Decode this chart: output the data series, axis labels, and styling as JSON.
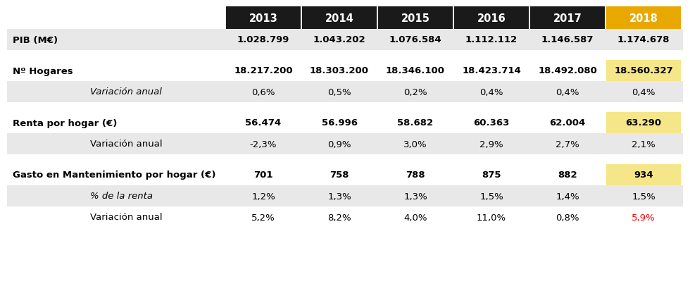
{
  "years": [
    "2013",
    "2014",
    "2015",
    "2016",
    "2017",
    "2018"
  ],
  "header_bg_colors": [
    "#1a1a1a",
    "#1a1a1a",
    "#1a1a1a",
    "#1a1a1a",
    "#1a1a1a",
    "#e8a800"
  ],
  "header_text_colors": [
    "#ffffff",
    "#ffffff",
    "#ffffff",
    "#ffffff",
    "#ffffff",
    "#ffffff"
  ],
  "col_2018_bg": "#f5e68a",
  "row_alt_bg": "#e8e8e8",
  "row_white_bg": "#ffffff",
  "rows": [
    {
      "label": "PIB (M€)",
      "indent": false,
      "label_style": "normal",
      "label_weight": "bold",
      "values": [
        "1.028.799",
        "1.043.202",
        "1.076.584",
        "1.112.112",
        "1.146.587",
        "1.174.678"
      ],
      "value_weight": "bold",
      "value_color": "#000000",
      "last_value_color": "#000000",
      "bg": "alt",
      "yellow_last": false,
      "spacer": false
    },
    {
      "label": "",
      "indent": false,
      "label_style": "normal",
      "label_weight": "normal",
      "values": [
        "",
        "",
        "",
        "",
        "",
        ""
      ],
      "value_weight": "normal",
      "value_color": "#000000",
      "last_value_color": "#000000",
      "bg": "white",
      "yellow_last": false,
      "spacer": true
    },
    {
      "label": "Nº Hogares",
      "indent": false,
      "label_style": "normal",
      "label_weight": "bold",
      "values": [
        "18.217.200",
        "18.303.200",
        "18.346.100",
        "18.423.714",
        "18.492.080",
        "18.560.327"
      ],
      "value_weight": "bold",
      "value_color": "#000000",
      "last_value_color": "#000000",
      "bg": "white",
      "yellow_last": true,
      "spacer": false
    },
    {
      "label": "Variación anual",
      "indent": true,
      "label_style": "italic",
      "label_weight": "normal",
      "values": [
        "0,6%",
        "0,5%",
        "0,2%",
        "0,4%",
        "0,4%",
        "0,4%"
      ],
      "value_weight": "normal",
      "value_color": "#000000",
      "last_value_color": "#000000",
      "bg": "alt",
      "yellow_last": false,
      "spacer": false
    },
    {
      "label": "",
      "indent": false,
      "label_style": "normal",
      "label_weight": "normal",
      "values": [
        "",
        "",
        "",
        "",
        "",
        ""
      ],
      "value_weight": "normal",
      "value_color": "#000000",
      "last_value_color": "#000000",
      "bg": "white",
      "yellow_last": false,
      "spacer": true
    },
    {
      "label": "Renta por hogar (€)",
      "indent": false,
      "label_style": "normal",
      "label_weight": "bold",
      "values": [
        "56.474",
        "56.996",
        "58.682",
        "60.363",
        "62.004",
        "63.290"
      ],
      "value_weight": "bold",
      "value_color": "#000000",
      "last_value_color": "#000000",
      "bg": "white",
      "yellow_last": true,
      "spacer": false
    },
    {
      "label": "Variación anual",
      "indent": true,
      "label_style": "normal",
      "label_weight": "normal",
      "values": [
        "-2,3%",
        "0,9%",
        "3,0%",
        "2,9%",
        "2,7%",
        "2,1%"
      ],
      "value_weight": "normal",
      "value_color": "#000000",
      "last_value_color": "#000000",
      "bg": "alt",
      "yellow_last": false,
      "spacer": false
    },
    {
      "label": "",
      "indent": false,
      "label_style": "normal",
      "label_weight": "normal",
      "values": [
        "",
        "",
        "",
        "",
        "",
        ""
      ],
      "value_weight": "normal",
      "value_color": "#000000",
      "last_value_color": "#000000",
      "bg": "white",
      "yellow_last": false,
      "spacer": true
    },
    {
      "label": "Gasto en Mantenimiento por hogar (€)",
      "indent": false,
      "label_style": "normal",
      "label_weight": "bold",
      "values": [
        "701",
        "758",
        "788",
        "875",
        "882",
        "934"
      ],
      "value_weight": "bold",
      "value_color": "#000000",
      "last_value_color": "#000000",
      "bg": "white",
      "yellow_last": true,
      "spacer": false
    },
    {
      "label": "% de la renta",
      "indent": true,
      "label_style": "italic",
      "label_weight": "normal",
      "values": [
        "1,2%",
        "1,3%",
        "1,3%",
        "1,5%",
        "1,4%",
        "1,5%"
      ],
      "value_weight": "normal",
      "value_color": "#000000",
      "last_value_color": "#000000",
      "bg": "alt",
      "yellow_last": false,
      "spacer": false
    },
    {
      "label": "Variación anual",
      "indent": true,
      "label_style": "normal",
      "label_weight": "normal",
      "values": [
        "5,2%",
        "8,2%",
        "4,0%",
        "11,0%",
        "0,8%",
        "5,9%"
      ],
      "value_weight": "normal",
      "value_color": "#000000",
      "last_value_color": "#ff0000",
      "bg": "white",
      "yellow_last": false,
      "spacer": false
    }
  ],
  "figsize": [
    9.8,
    4.14
  ],
  "dpi": 100,
  "font_size": 9.5,
  "header_font_size": 10.5
}
